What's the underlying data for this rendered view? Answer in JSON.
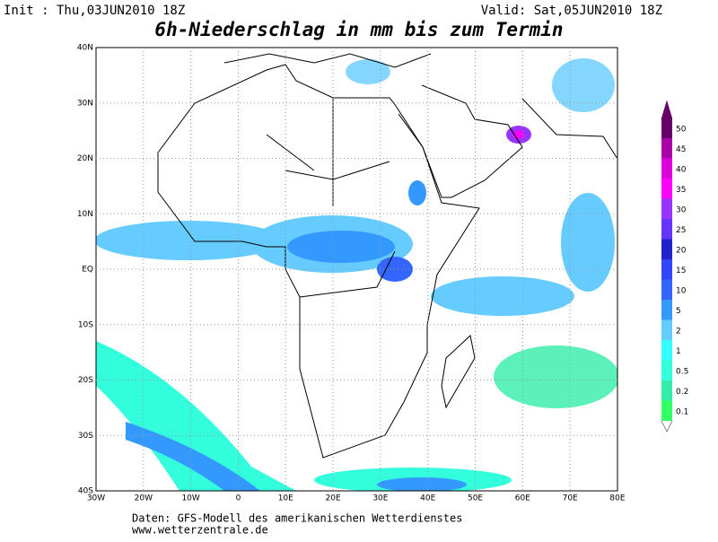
{
  "header": {
    "init": "Init : Thu,03JUN2010 18Z",
    "valid": "Valid: Sat,05JUN2010 18Z",
    "title": "6h-Niederschlag in mm bis zum Termin"
  },
  "map": {
    "lon_labels": [
      "30W",
      "20W",
      "10W",
      "0",
      "10E",
      "20E",
      "30E",
      "40E",
      "50E",
      "60E",
      "70E",
      "80E"
    ],
    "lat_labels": [
      "40N",
      "30N",
      "20N",
      "10N",
      "EQ",
      "10S",
      "20S",
      "30S",
      "40S"
    ]
  },
  "legend": {
    "items": [
      {
        "label": "0.1",
        "color": "#33ff66"
      },
      {
        "label": "0.2",
        "color": "#33eeaa"
      },
      {
        "label": "0.5",
        "color": "#33ffdd"
      },
      {
        "label": "1",
        "color": "#33ffff"
      },
      {
        "label": "2",
        "color": "#66ccff"
      },
      {
        "label": "5",
        "color": "#3399ff"
      },
      {
        "label": "10",
        "color": "#3366ff"
      },
      {
        "label": "15",
        "color": "#3344ff"
      },
      {
        "label": "20",
        "color": "#2222cc"
      },
      {
        "label": "25",
        "color": "#6633ff"
      },
      {
        "label": "30",
        "color": "#9933ff"
      },
      {
        "label": "35",
        "color": "#ff00ff"
      },
      {
        "label": "40",
        "color": "#dd00dd"
      },
      {
        "label": "45",
        "color": "#aa00aa"
      },
      {
        "label": "50",
        "color": "#660066"
      }
    ]
  },
  "footer": {
    "line1": "Daten: GFS-Modell des amerikanischen Wetterdienstes",
    "line2": "www.wetterzentrale.de"
  }
}
